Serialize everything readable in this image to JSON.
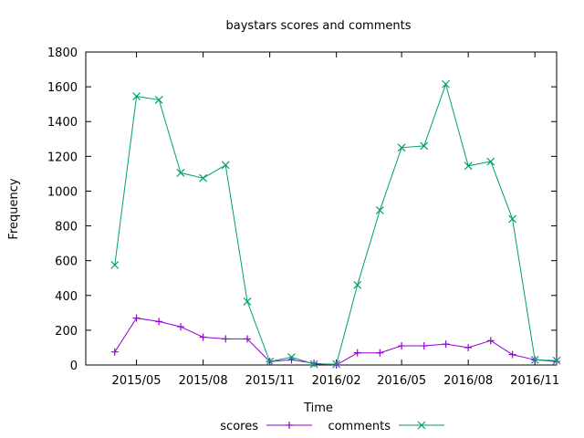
{
  "chart_data": {
    "type": "line",
    "title": "baystars scores and comments",
    "xlabel": "Time",
    "ylabel": "Frequency",
    "ylim": [
      0,
      1800
    ],
    "yticks": [
      0,
      200,
      400,
      600,
      800,
      1000,
      1200,
      1400,
      1600,
      1800
    ],
    "xlim": [
      "2015-02-20",
      "2016-12-01"
    ],
    "xticks": [
      {
        "label": "2015/05",
        "x": "2015-05-01"
      },
      {
        "label": "2015/08",
        "x": "2015-08-01"
      },
      {
        "label": "2015/11",
        "x": "2015-11-01"
      },
      {
        "label": "2016/02",
        "x": "2016-02-01"
      },
      {
        "label": "2016/05",
        "x": "2016-05-01"
      },
      {
        "label": "2016/08",
        "x": "2016-08-01"
      },
      {
        "label": "2016/11",
        "x": "2016-11-01"
      }
    ],
    "x": [
      "2015-04-01",
      "2015-05-01",
      "2015-06-01",
      "2015-07-01",
      "2015-08-01",
      "2015-09-01",
      "2015-10-01",
      "2015-11-01",
      "2015-12-01",
      "2016-01-01",
      "2016-02-01",
      "2016-03-01",
      "2016-04-01",
      "2016-05-01",
      "2016-06-01",
      "2016-07-01",
      "2016-08-01",
      "2016-09-01",
      "2016-10-01",
      "2016-11-01",
      "2016-12-01"
    ],
    "series": [
      {
        "name": "scores",
        "color": "#9400d3",
        "marker": "plus",
        "values": [
          75,
          270,
          250,
          220,
          160,
          150,
          150,
          20,
          30,
          10,
          0,
          70,
          70,
          110,
          110,
          120,
          100,
          140,
          60,
          30,
          20
        ]
      },
      {
        "name": "comments",
        "color": "#009e73",
        "marker": "cross",
        "values": [
          575,
          1545,
          1525,
          1105,
          1075,
          1150,
          365,
          20,
          45,
          5,
          5,
          460,
          890,
          1250,
          1260,
          1615,
          1145,
          1170,
          840,
          30,
          25
        ]
      }
    ],
    "grid": false,
    "legend": "bottom"
  }
}
